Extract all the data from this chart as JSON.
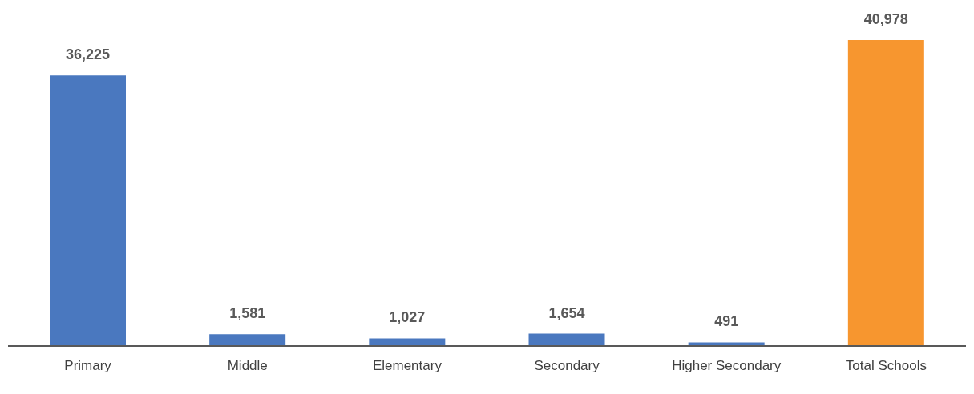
{
  "chart_data": {
    "type": "bar",
    "categories": [
      "Primary",
      "Middle",
      "Elementary",
      "Secondary",
      "Higher Secondary",
      "Total Schools"
    ],
    "values": [
      36225,
      1581,
      1027,
      1654,
      491,
      40978
    ],
    "colors": [
      "#4a78bf",
      "#4a78bf",
      "#4a78bf",
      "#4a78bf",
      "#4a78bf",
      "#f7962f"
    ],
    "value_labels": [
      "36,225",
      "1,581",
      "1,027",
      "1,654",
      "491",
      "40,978"
    ],
    "tick_labels": "x",
    "grid": false
  }
}
